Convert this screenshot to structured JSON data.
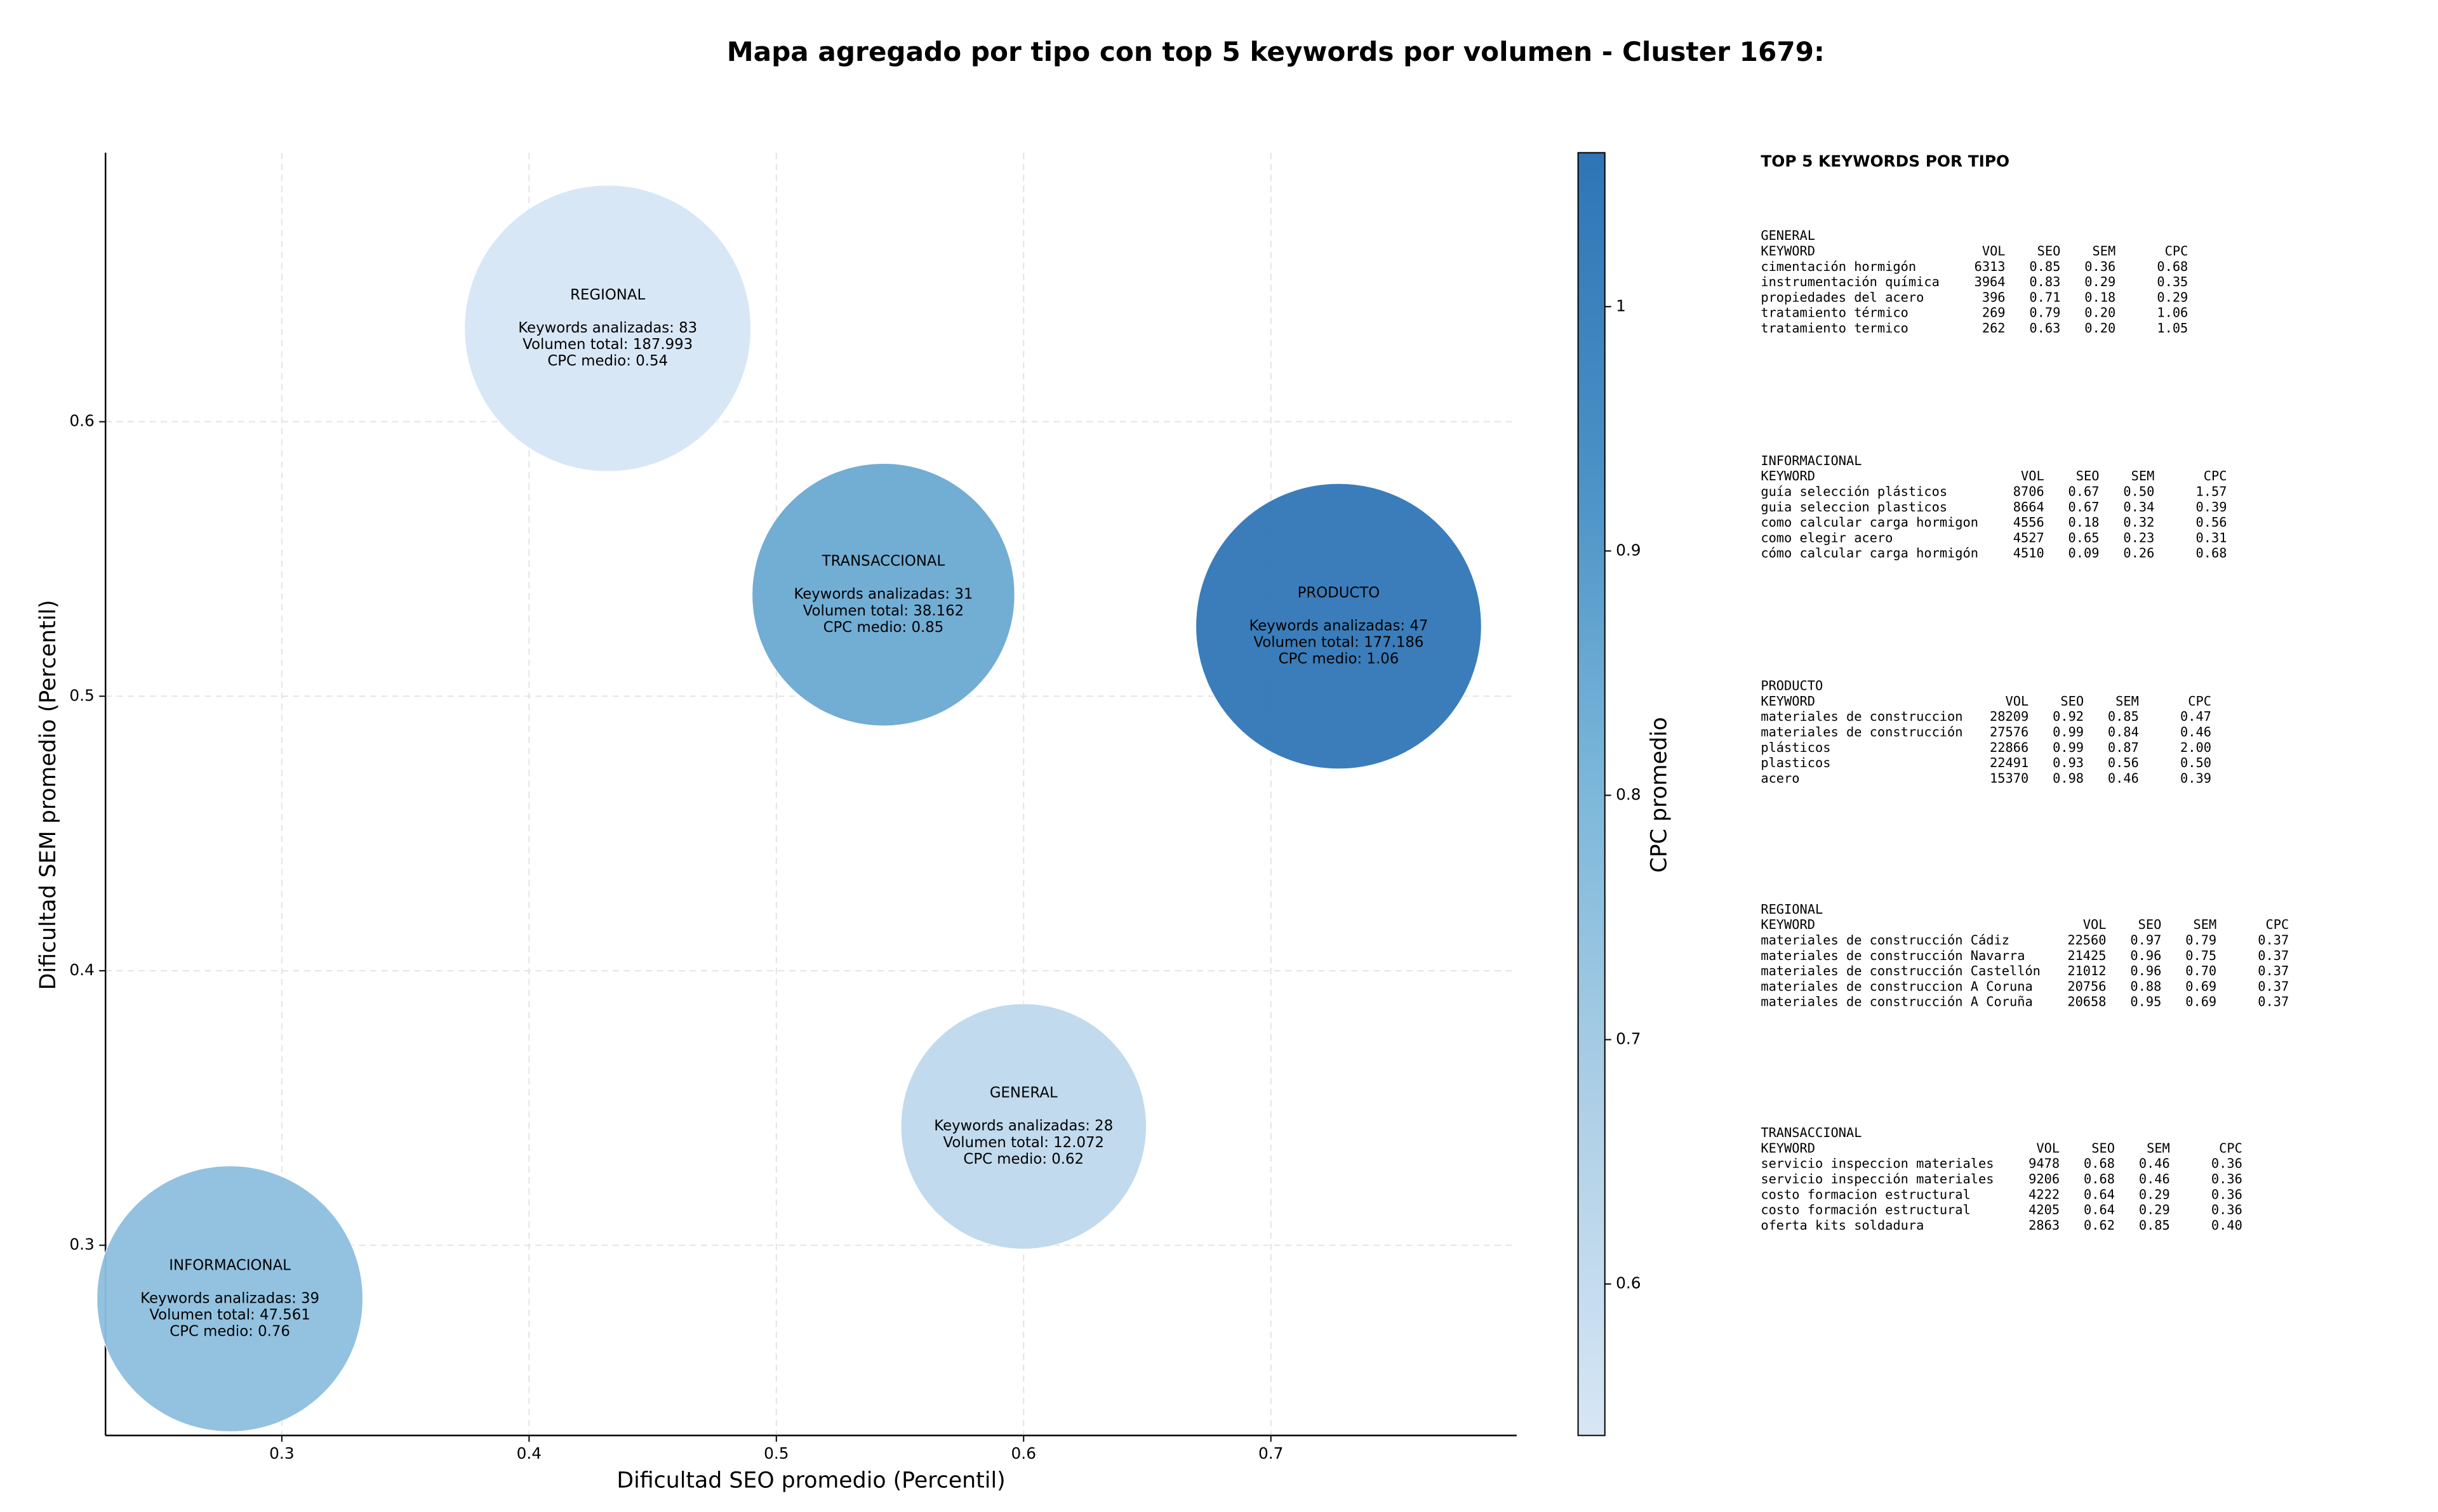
{
  "chart_data": {
    "type": "bubble",
    "title": "Mapa agregado por tipo con top 5 keywords por volumen - Cluster 1679:",
    "x_label": "Dificultad SEO promedio (Percentil)",
    "y_label": "Dificultad SEM promedio (Percentil)",
    "xlim": [
      0.2287,
      0.7994
    ],
    "ylim": [
      0.2307,
      0.698
    ],
    "xticks": [
      0.3,
      0.4,
      0.5,
      0.6,
      0.7
    ],
    "yticks": [
      0.3,
      0.4,
      0.5,
      0.6
    ],
    "grid": true,
    "colorbar": {
      "label": "CPC promedio",
      "clim": [
        0.538,
        1.063
      ],
      "ticks": [
        0.6,
        0.7,
        0.8,
        0.9,
        1.0
      ],
      "cmap": [
        "#d7e6f5",
        "#afd0e7",
        "#7db8da",
        "#4a91c6",
        "#2e75b6"
      ]
    },
    "points": [
      {
        "name": "REGIONAL",
        "x": 0.4318,
        "y": 0.634,
        "keywords": 83,
        "keywords_label": "Keywords analizadas: 83",
        "volume": 187993,
        "volume_label": "Volumen total: 187.993",
        "cpc": 0.54,
        "cpc_label": "CPC medio: 0.54"
      },
      {
        "name": "TRANSACCIONAL",
        "x": 0.5433,
        "y": 0.537,
        "keywords": 31,
        "keywords_label": "Keywords analizadas: 31",
        "volume": 38162,
        "volume_label": "Volumen total: 38.162",
        "cpc": 0.85,
        "cpc_label": "CPC medio: 0.85"
      },
      {
        "name": "PRODUCTO",
        "x": 0.7274,
        "y": 0.5255,
        "keywords": 47,
        "keywords_label": "Keywords analizadas: 47",
        "volume": 177186,
        "volume_label": "Volumen total: 177.186",
        "cpc": 1.06,
        "cpc_label": "CPC medio: 1.06"
      },
      {
        "name": "GENERAL",
        "x": 0.6,
        "y": 0.3433,
        "keywords": 28,
        "keywords_label": "Keywords analizadas: 28",
        "volume": 12072,
        "volume_label": "Volumen total: 12.072",
        "cpc": 0.62,
        "cpc_label": "CPC medio: 0.62"
      },
      {
        "name": "INFORMACIONAL",
        "x": 0.279,
        "y": 0.2805,
        "keywords": 39,
        "keywords_label": "Keywords analizadas: 39",
        "volume": 47561,
        "volume_label": "Volumen total: 47.561",
        "cpc": 0.76,
        "cpc_label": "CPC medio: 0.76"
      }
    ],
    "panel": {
      "title": "TOP 5 KEYWORDS POR TIPO",
      "columns": [
        "KEYWORD",
        "VOL",
        "SEO",
        "SEM",
        "CPC"
      ],
      "sections": [
        {
          "name": "GENERAL",
          "rows": [
            [
              "cimentación hormigón",
              "6313",
              "0.85",
              "0.36",
              "0.68"
            ],
            [
              "instrumentación química",
              "3964",
              "0.83",
              "0.29",
              "0.35"
            ],
            [
              "propiedades del acero",
              "396",
              "0.71",
              "0.18",
              "0.29"
            ],
            [
              "tratamiento térmico",
              "269",
              "0.79",
              "0.20",
              "1.06"
            ],
            [
              "tratamiento termico",
              "262",
              "0.63",
              "0.20",
              "1.05"
            ]
          ]
        },
        {
          "name": "INFORMACIONAL",
          "rows": [
            [
              "guía selección plásticos",
              "8706",
              "0.67",
              "0.50",
              "1.57"
            ],
            [
              "guia seleccion plasticos",
              "8664",
              "0.67",
              "0.34",
              "0.39"
            ],
            [
              "como calcular carga hormigon",
              "4556",
              "0.18",
              "0.32",
              "0.56"
            ],
            [
              "como elegir acero",
              "4527",
              "0.65",
              "0.23",
              "0.31"
            ],
            [
              "cómo calcular carga hormigón",
              "4510",
              "0.09",
              "0.26",
              "0.68"
            ]
          ]
        },
        {
          "name": "PRODUCTO",
          "rows": [
            [
              "materiales de construccion",
              "28209",
              "0.92",
              "0.85",
              "0.47"
            ],
            [
              "materiales de construcción",
              "27576",
              "0.99",
              "0.84",
              "0.46"
            ],
            [
              "plásticos",
              "22866",
              "0.99",
              "0.87",
              "2.00"
            ],
            [
              "plasticos",
              "22491",
              "0.93",
              "0.56",
              "0.50"
            ],
            [
              "acero",
              "15370",
              "0.98",
              "0.46",
              "0.39"
            ]
          ]
        },
        {
          "name": "REGIONAL",
          "rows": [
            [
              "materiales de construcción Cádiz",
              "22560",
              "0.97",
              "0.79",
              "0.37"
            ],
            [
              "materiales de construcción Navarra",
              "21425",
              "0.96",
              "0.75",
              "0.37"
            ],
            [
              "materiales de construcción Castellón",
              "21012",
              "0.96",
              "0.70",
              "0.37"
            ],
            [
              "materiales de construccion A Coruna",
              "20756",
              "0.88",
              "0.69",
              "0.37"
            ],
            [
              "materiales de construcción A Coruña",
              "20658",
              "0.95",
              "0.69",
              "0.37"
            ]
          ]
        },
        {
          "name": "TRANSACCIONAL",
          "rows": [
            [
              "servicio inspeccion materiales",
              "9478",
              "0.68",
              "0.46",
              "0.36"
            ],
            [
              "servicio inspección materiales",
              "9206",
              "0.68",
              "0.46",
              "0.36"
            ],
            [
              "costo formacion estructural",
              "4222",
              "0.64",
              "0.29",
              "0.36"
            ],
            [
              "costo formación estructural",
              "4205",
              "0.64",
              "0.29",
              "0.36"
            ],
            [
              "oferta kits soldadura",
              "2863",
              "0.62",
              "0.85",
              "0.40"
            ]
          ]
        }
      ]
    }
  }
}
